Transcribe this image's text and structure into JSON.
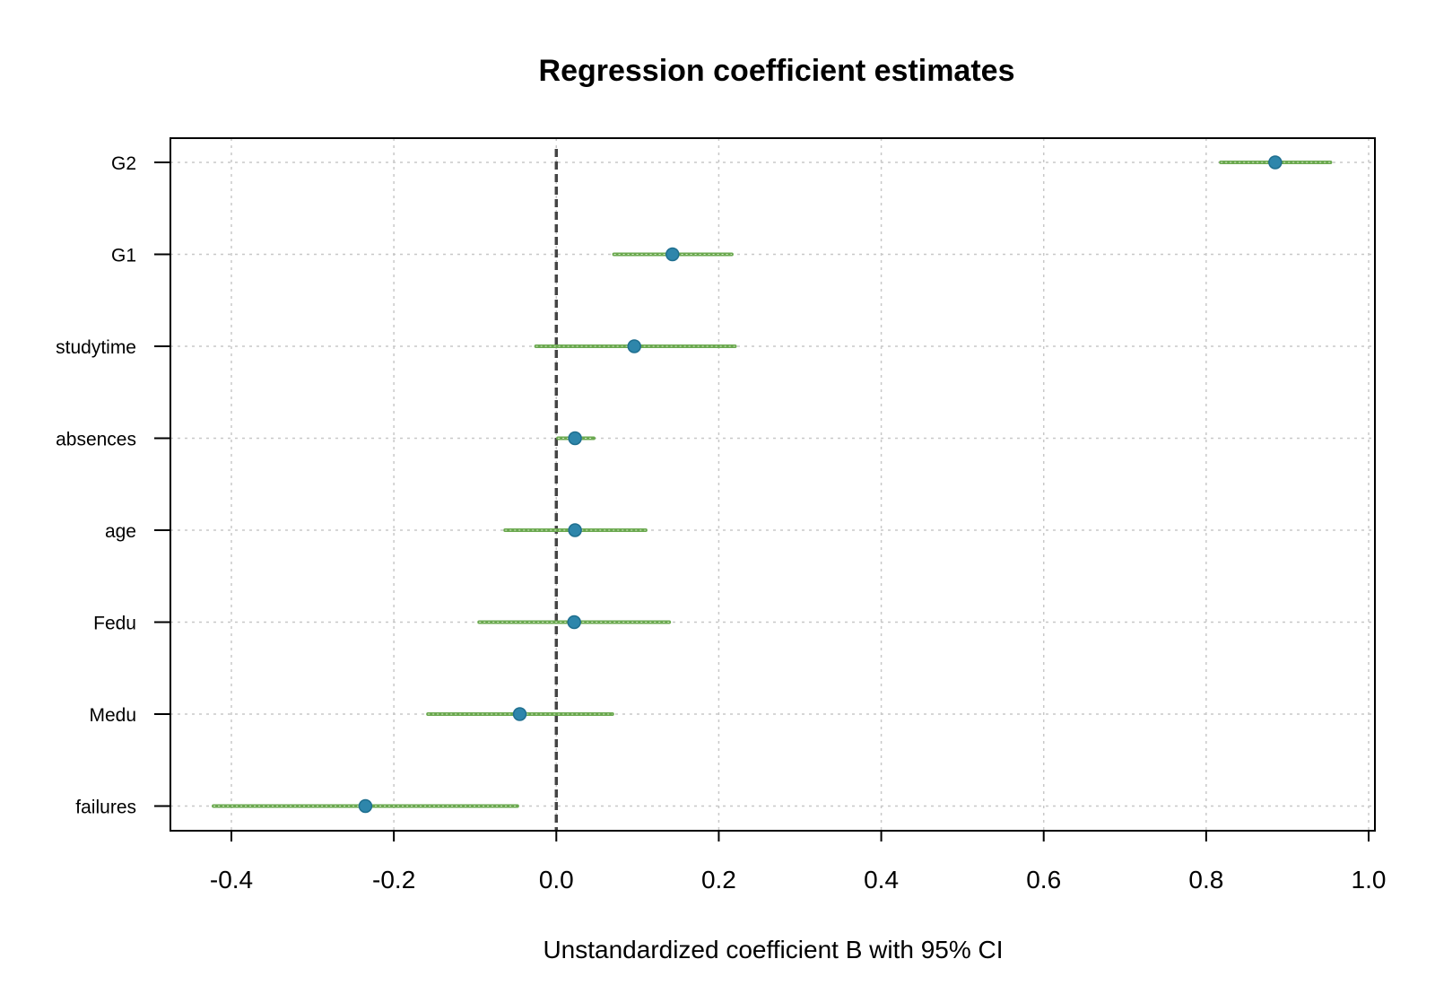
{
  "chart_data": {
    "type": "scatter",
    "title": "Regression coefficient estimates",
    "xlabel": "Unstandardized coefficient B with 95% CI",
    "ylabel": "",
    "xlim": [
      -0.48,
      1.0
    ],
    "x_ticks": [
      "-0.4",
      "-0.2",
      "0.0",
      "0.2",
      "0.4",
      "0.6",
      "0.8",
      "1.0"
    ],
    "x_tick_values": [
      -0.4,
      -0.2,
      0.0,
      0.2,
      0.4,
      0.6,
      0.8,
      1.0
    ],
    "reference_line_x": 0.0,
    "grid": true,
    "colors": {
      "point": "#2e86ab",
      "ci": "#6aa84f",
      "grid": "#c8c8c8",
      "refline": "#444444"
    },
    "categories": [
      "G2",
      "G1",
      "studytime",
      "absences",
      "age",
      "Fedu",
      "Medu",
      "failures"
    ],
    "estimates": [
      0.885,
      0.143,
      0.096,
      0.023,
      0.023,
      0.022,
      -0.045,
      -0.235
    ],
    "ci_low": [
      0.818,
      0.071,
      -0.025,
      0.002,
      -0.063,
      -0.095,
      -0.158,
      -0.422
    ],
    "ci_high": [
      0.953,
      0.216,
      0.22,
      0.046,
      0.11,
      0.139,
      0.069,
      -0.048
    ]
  }
}
